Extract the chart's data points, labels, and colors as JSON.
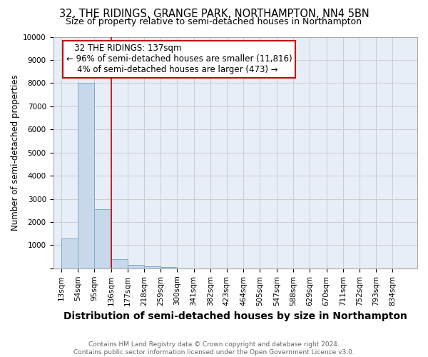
{
  "title": "32, THE RIDINGS, GRANGE PARK, NORTHAMPTON, NN4 5BN",
  "subtitle": "Size of property relative to semi-detached houses in Northampton",
  "xlabel": "Distribution of semi-detached houses by size in Northampton",
  "ylabel": "Number of semi-detached properties",
  "footnote": "Contains HM Land Registry data © Crown copyright and database right 2024.\nContains public sector information licensed under the Open Government Licence v3.0.",
  "bins": [
    13,
    54,
    95,
    136,
    177,
    218,
    259,
    300,
    341,
    382,
    423,
    464,
    505,
    547,
    588,
    629,
    670,
    711,
    752,
    793,
    834
  ],
  "bar_heights": [
    1300,
    8000,
    2550,
    400,
    150,
    100,
    50,
    0,
    0,
    0,
    0,
    0,
    0,
    0,
    0,
    0,
    0,
    0,
    0,
    0
  ],
  "bar_color": "#c8d8eb",
  "bar_edge_color": "#7aaaca",
  "property_line_x": 136,
  "property_line_color": "#cc0000",
  "annotation_title": "32 THE RIDINGS: 137sqm",
  "annotation_line1": "← 96% of semi-detached houses are smaller (11,816)",
  "annotation_line2": "    4% of semi-detached houses are larger (473) →",
  "annotation_box_color": "#cc0000",
  "annotation_box_fill": "#ffffff",
  "ylim": [
    0,
    10000
  ],
  "yticks": [
    0,
    1000,
    2000,
    3000,
    4000,
    5000,
    6000,
    7000,
    8000,
    9000,
    10000
  ],
  "grid_color": "#cccccc",
  "bg_color": "#e8eef8",
  "title_fontsize": 10.5,
  "subtitle_fontsize": 9,
  "xlabel_fontsize": 10,
  "ylabel_fontsize": 8.5,
  "tick_fontsize": 7.5,
  "annotation_fontsize": 8.5,
  "footnote_fontsize": 6.5
}
